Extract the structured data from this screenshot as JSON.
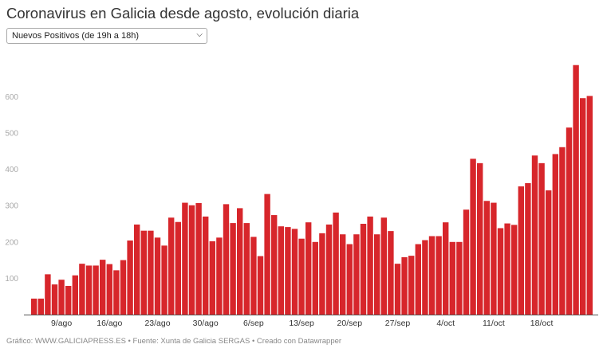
{
  "title": "Coronavirus en Galicia desde agosto, evolución diaria",
  "dropdown": {
    "selected": "Nuevos Positivos (de 19h a 18h)",
    "icon": "chevron-down-icon"
  },
  "footer": "Gráfico: WWW.GALICIAPRESS.ES • Fuente: Xunta de Galicia SERGAS • Creado con Datawrapper",
  "chart_data": {
    "type": "bar",
    "title": "",
    "xlabel": "",
    "ylabel": "",
    "ylim": [
      0,
      700
    ],
    "grid": false,
    "bar_color": "#d7262b",
    "y_ticks": [
      100,
      200,
      300,
      400,
      500,
      600
    ],
    "x_tick_labels": [
      "9/ago",
      "16/ago",
      "23/ago",
      "30/ago",
      "6/sep",
      "13/sep",
      "20/sep",
      "27/sep",
      "4/oct",
      "11/oct",
      "18/oct"
    ],
    "date_range": [
      "5/ago",
      "25/oct"
    ],
    "values": [
      44,
      44,
      111,
      83,
      96,
      79,
      108,
      140,
      135,
      135,
      151,
      139,
      122,
      150,
      204,
      248,
      231,
      231,
      212,
      190,
      267,
      255,
      308,
      301,
      307,
      270,
      202,
      212,
      304,
      252,
      293,
      252,
      214,
      161,
      332,
      274,
      243,
      241,
      236,
      209,
      254,
      200,
      224,
      248,
      281,
      221,
      194,
      221,
      250,
      270,
      221,
      267,
      230,
      140,
      158,
      162,
      194,
      205,
      216,
      216,
      254,
      200,
      200,
      289,
      429,
      417,
      313,
      308,
      238,
      251,
      247,
      353,
      362,
      438,
      417,
      342,
      442,
      461,
      515,
      687,
      596,
      602
    ]
  }
}
